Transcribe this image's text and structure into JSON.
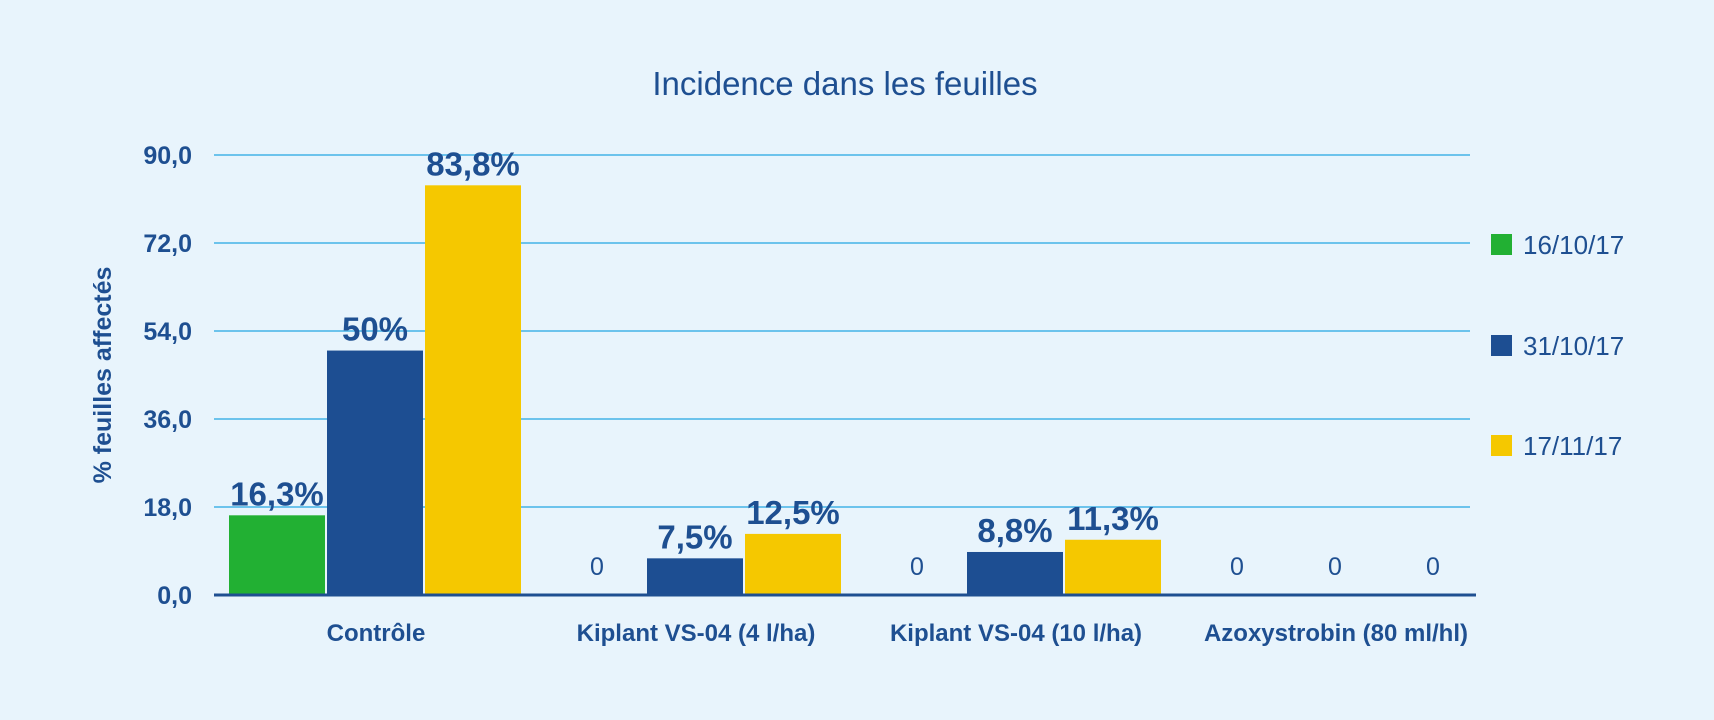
{
  "colors": {
    "background": "#e8f4fc",
    "text": "#1e4f91",
    "grid": "#6cc3ec",
    "axis": "#1e4f91"
  },
  "chart_data": {
    "type": "bar",
    "title": "Incidence dans les feuilles",
    "xlabel": "",
    "ylabel": "% feuilles affectés",
    "ylim": [
      0,
      90
    ],
    "yticks": [
      "0,0",
      "18,0",
      "36,0",
      "54,0",
      "72,0",
      "90,0"
    ],
    "ytick_values": [
      0,
      18,
      36,
      54,
      72,
      90
    ],
    "grid": true,
    "legend_position": "right",
    "categories": [
      "Contrôle",
      "Kiplant VS-04 (4 l/ha)",
      "Kiplant VS-04 (10 l/ha)",
      "Azoxystrobin (80 ml/hl)"
    ],
    "series": [
      {
        "name": "16/10/17",
        "color": "#22b033",
        "values": [
          16.3,
          0,
          0,
          0
        ],
        "labels": [
          "16,3%",
          "0",
          "0",
          "0"
        ]
      },
      {
        "name": "31/10/17",
        "color": "#1d4e92",
        "values": [
          50,
          7.5,
          8.8,
          0
        ],
        "labels": [
          "50%",
          "7,5%",
          "8,8%",
          "0"
        ]
      },
      {
        "name": "17/11/17",
        "color": "#f5c800",
        "values": [
          83.8,
          12.5,
          11.3,
          0
        ],
        "labels": [
          "83,8%",
          "12,5%",
          "11,3%",
          "0"
        ]
      }
    ]
  }
}
